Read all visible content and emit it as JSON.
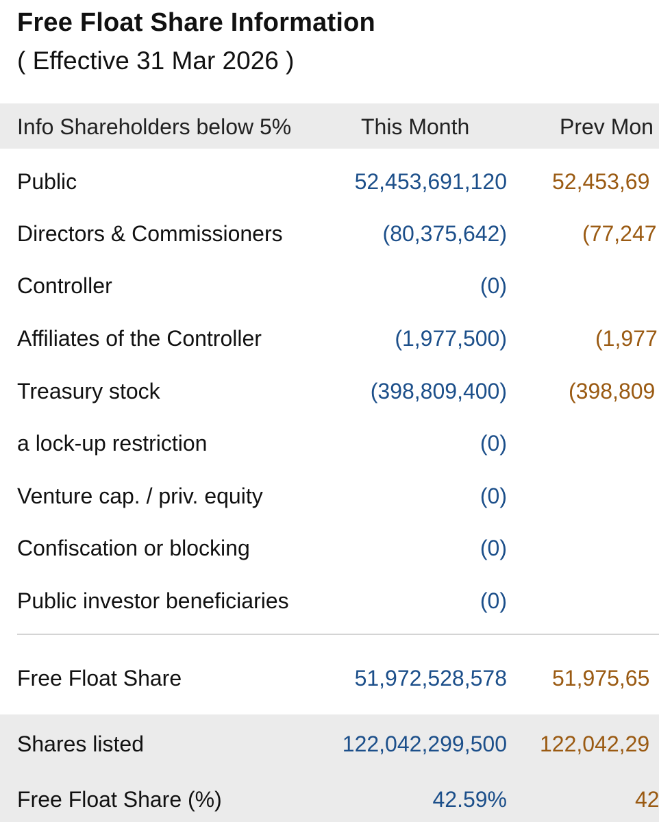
{
  "title": "Free Float Share Information",
  "subtitle": "( Effective 31 Mar 2026 )",
  "header": {
    "label": "Info Shareholders below 5%",
    "this_month": "This Month",
    "prev_month": "Prev Mon"
  },
  "rows": [
    {
      "label": "Public",
      "this_month": "52,453,691,120",
      "prev_month": "52,453,69"
    },
    {
      "label": "Directors & Commissioners",
      "this_month": "(80,375,642)",
      "prev_month": "(77,247"
    },
    {
      "label": "Controller",
      "this_month": "(0)",
      "prev_month": ""
    },
    {
      "label": "Affiliates of the Controller",
      "this_month": "(1,977,500)",
      "prev_month": "(1,977"
    },
    {
      "label": "Treasury stock",
      "this_month": "(398,809,400)",
      "prev_month": "(398,809"
    },
    {
      "label": "a lock-up restriction",
      "this_month": "(0)",
      "prev_month": ""
    },
    {
      "label": "Venture cap. / priv. equity",
      "this_month": "(0)",
      "prev_month": ""
    },
    {
      "label": "Confiscation or blocking",
      "this_month": "(0)",
      "prev_month": ""
    },
    {
      "label": "Public investor beneficiaries",
      "this_month": "(0)",
      "prev_month": ""
    }
  ],
  "summary": [
    {
      "label": "Free Float Share",
      "this_month": "51,972,528,578",
      "prev_month": "51,975,65"
    },
    {
      "label": "Shares listed",
      "this_month": "122,042,299,500",
      "prev_month": "122,042,29"
    },
    {
      "label": "Free Float Share (%)",
      "this_month": "42.59%",
      "prev_month": "42"
    }
  ],
  "colors": {
    "this_month": "#1c4f8a",
    "prev_month": "#9a5a12",
    "header_bg": "#ebebeb"
  }
}
